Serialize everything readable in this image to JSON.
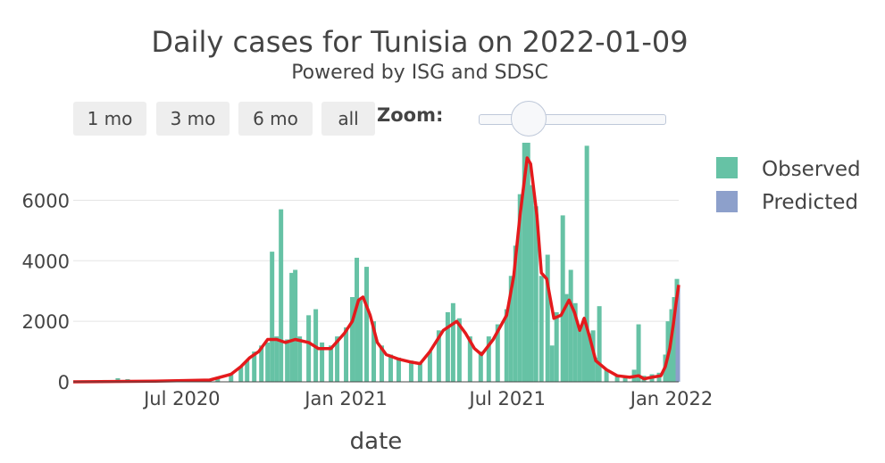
{
  "chart_data": {
    "type": "bar",
    "title": "Daily cases for Tunisia on 2022-01-09",
    "subtitle": "Powered by ISG and SDSC",
    "xlabel": "date",
    "ylabel": "",
    "ylim": [
      0,
      7900
    ],
    "xlim": [
      "2020-03-01",
      "2022-01-09"
    ],
    "yticks": [
      0,
      2000,
      4000,
      6000
    ],
    "ytick_labels": [
      "0",
      "2000",
      "4000",
      "6000"
    ],
    "xticks": [
      "2020-07-01",
      "2021-01-01",
      "2021-07-01",
      "2022-01-01"
    ],
    "xtick_labels": [
      "Jul 2020",
      "Jan 2021",
      "Jul 2021",
      "Jan 2022"
    ],
    "grid": true,
    "legend_position": "right",
    "series": [
      {
        "name": "Observed",
        "kind": "bar",
        "color": "#66c2a5",
        "points": [
          [
            "2020-03-01",
            0
          ],
          [
            "2020-03-20",
            20
          ],
          [
            "2020-04-05",
            60
          ],
          [
            "2020-04-20",
            120
          ],
          [
            "2020-05-01",
            90
          ],
          [
            "2020-05-20",
            40
          ],
          [
            "2020-06-10",
            20
          ],
          [
            "2020-07-01",
            30
          ],
          [
            "2020-07-20",
            80
          ],
          [
            "2020-08-10",
            150
          ],
          [
            "2020-08-25",
            250
          ],
          [
            "2020-09-05",
            500
          ],
          [
            "2020-09-12",
            700
          ],
          [
            "2020-09-20",
            1000
          ],
          [
            "2020-09-28",
            1200
          ],
          [
            "2020-10-05",
            1300
          ],
          [
            "2020-10-10",
            4300
          ],
          [
            "2020-10-15",
            1500
          ],
          [
            "2020-10-20",
            5700
          ],
          [
            "2020-10-27",
            1400
          ],
          [
            "2020-11-01",
            3600
          ],
          [
            "2020-11-05",
            3700
          ],
          [
            "2020-11-10",
            1500
          ],
          [
            "2020-11-20",
            2200
          ],
          [
            "2020-11-28",
            2400
          ],
          [
            "2020-12-05",
            1300
          ],
          [
            "2020-12-15",
            1200
          ],
          [
            "2020-12-22",
            1500
          ],
          [
            "2021-01-01",
            1800
          ],
          [
            "2021-01-08",
            2800
          ],
          [
            "2021-01-13",
            4100
          ],
          [
            "2021-01-17",
            2700
          ],
          [
            "2021-01-24",
            3800
          ],
          [
            "2021-02-01",
            2000
          ],
          [
            "2021-02-10",
            1200
          ],
          [
            "2021-02-20",
            900
          ],
          [
            "2021-03-01",
            800
          ],
          [
            "2021-03-15",
            700
          ],
          [
            "2021-03-25",
            600
          ],
          [
            "2021-04-05",
            1000
          ],
          [
            "2021-04-15",
            1700
          ],
          [
            "2021-04-25",
            2300
          ],
          [
            "2021-05-01",
            2600
          ],
          [
            "2021-05-08",
            2100
          ],
          [
            "2021-05-20",
            1500
          ],
          [
            "2021-06-01",
            1000
          ],
          [
            "2021-06-10",
            1500
          ],
          [
            "2021-06-20",
            1900
          ],
          [
            "2021-06-30",
            2400
          ],
          [
            "2021-07-05",
            3500
          ],
          [
            "2021-07-10",
            4500
          ],
          [
            "2021-07-15",
            6200
          ],
          [
            "2021-07-20",
            7900
          ],
          [
            "2021-07-24",
            7900
          ],
          [
            "2021-07-28",
            6500
          ],
          [
            "2021-08-02",
            5800
          ],
          [
            "2021-08-08",
            3500
          ],
          [
            "2021-08-15",
            4200
          ],
          [
            "2021-08-20",
            1200
          ],
          [
            "2021-08-25",
            2300
          ],
          [
            "2021-09-01",
            5500
          ],
          [
            "2021-09-05",
            2900
          ],
          [
            "2021-09-10",
            3700
          ],
          [
            "2021-09-15",
            2600
          ],
          [
            "2021-09-20",
            1800
          ],
          [
            "2021-09-25",
            2100
          ],
          [
            "2021-09-28",
            7800
          ],
          [
            "2021-10-01",
            1600
          ],
          [
            "2021-10-05",
            1700
          ],
          [
            "2021-10-10",
            800
          ],
          [
            "2021-10-12",
            2500
          ],
          [
            "2021-10-20",
            400
          ],
          [
            "2021-11-01",
            200
          ],
          [
            "2021-11-10",
            150
          ],
          [
            "2021-11-20",
            400
          ],
          [
            "2021-11-25",
            1900
          ],
          [
            "2021-12-01",
            200
          ],
          [
            "2021-12-10",
            250
          ],
          [
            "2021-12-18",
            300
          ],
          [
            "2021-12-25",
            900
          ],
          [
            "2021-12-28",
            2000
          ],
          [
            "2022-01-01",
            2400
          ],
          [
            "2022-01-04",
            2800
          ],
          [
            "2022-01-07",
            3400
          ]
        ]
      },
      {
        "name": "Predicted",
        "kind": "bar",
        "color": "#8da0cb",
        "points": [
          [
            "2022-01-07",
            2300
          ],
          [
            "2022-01-08",
            2700
          ],
          [
            "2022-01-09",
            3200
          ]
        ]
      },
      {
        "name": "",
        "kind": "line",
        "color": "#e41a1c",
        "points": [
          [
            "2020-03-01",
            0
          ],
          [
            "2020-06-01",
            20
          ],
          [
            "2020-08-01",
            60
          ],
          [
            "2020-08-25",
            250
          ],
          [
            "2020-09-05",
            500
          ],
          [
            "2020-09-15",
            800
          ],
          [
            "2020-09-25",
            1000
          ],
          [
            "2020-10-05",
            1400
          ],
          [
            "2020-10-15",
            1400
          ],
          [
            "2020-10-25",
            1300
          ],
          [
            "2020-11-05",
            1400
          ],
          [
            "2020-11-20",
            1300
          ],
          [
            "2020-12-01",
            1100
          ],
          [
            "2020-12-15",
            1100
          ],
          [
            "2020-12-30",
            1600
          ],
          [
            "2021-01-08",
            2000
          ],
          [
            "2021-01-15",
            2700
          ],
          [
            "2021-01-20",
            2800
          ],
          [
            "2021-01-28",
            2200
          ],
          [
            "2021-02-05",
            1300
          ],
          [
            "2021-02-15",
            900
          ],
          [
            "2021-03-01",
            750
          ],
          [
            "2021-03-15",
            650
          ],
          [
            "2021-03-25",
            600
          ],
          [
            "2021-04-05",
            1000
          ],
          [
            "2021-04-20",
            1700
          ],
          [
            "2021-05-05",
            2000
          ],
          [
            "2021-05-15",
            1600
          ],
          [
            "2021-05-25",
            1100
          ],
          [
            "2021-06-02",
            900
          ],
          [
            "2021-06-15",
            1400
          ],
          [
            "2021-06-30",
            2200
          ],
          [
            "2021-07-08",
            3500
          ],
          [
            "2021-07-15",
            5500
          ],
          [
            "2021-07-23",
            7400
          ],
          [
            "2021-07-27",
            7200
          ],
          [
            "2021-08-03",
            5500
          ],
          [
            "2021-08-08",
            3600
          ],
          [
            "2021-08-14",
            3400
          ],
          [
            "2021-08-22",
            2100
          ],
          [
            "2021-08-30",
            2200
          ],
          [
            "2021-09-08",
            2700
          ],
          [
            "2021-09-14",
            2300
          ],
          [
            "2021-09-20",
            1700
          ],
          [
            "2021-09-25",
            2100
          ],
          [
            "2021-10-01",
            1500
          ],
          [
            "2021-10-08",
            700
          ],
          [
            "2021-10-20",
            400
          ],
          [
            "2021-11-01",
            200
          ],
          [
            "2021-11-15",
            150
          ],
          [
            "2021-11-25",
            200
          ],
          [
            "2021-12-01",
            100
          ],
          [
            "2021-12-10",
            150
          ],
          [
            "2021-12-20",
            200
          ],
          [
            "2021-12-25",
            500
          ],
          [
            "2021-12-30",
            1100
          ],
          [
            "2022-01-03",
            1900
          ],
          [
            "2022-01-06",
            2600
          ],
          [
            "2022-01-09",
            3200
          ]
        ]
      }
    ]
  },
  "controls": {
    "range_buttons": [
      "1 mo",
      "3 mo",
      "6 mo",
      "all"
    ],
    "zoom_label": "Zoom:",
    "zoom_value": 0.3
  }
}
